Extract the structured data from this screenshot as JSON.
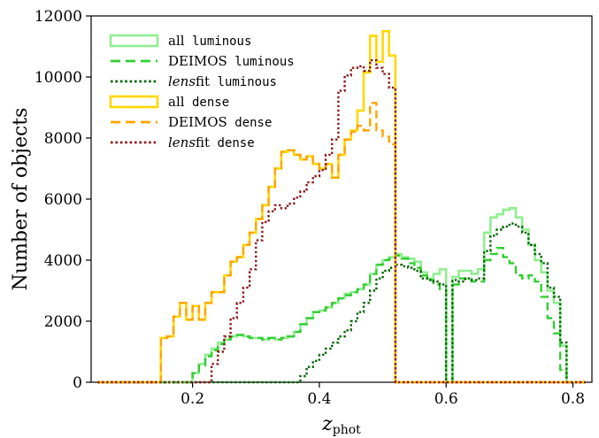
{
  "chart_data": {
    "type": "line",
    "step": true,
    "xlabel": "z",
    "xlabel_sub": "phot",
    "ylabel": "Number of objects",
    "xlim": [
      0.04,
      0.83
    ],
    "ylim": [
      0,
      12000
    ],
    "xticks": [
      0.2,
      0.4,
      0.6,
      0.8
    ],
    "xtick_labels": [
      "0.2",
      "0.4",
      "0.6",
      "0.8"
    ],
    "yticks": [
      0,
      2000,
      4000,
      6000,
      8000,
      10000,
      12000
    ],
    "ytick_labels": [
      "0",
      "2000",
      "4000",
      "6000",
      "8000",
      "10000",
      "12000"
    ],
    "grid": false,
    "legend_position": "top-left",
    "bin_edges": [
      0.05,
      0.06,
      0.07,
      0.08,
      0.09,
      0.1,
      0.11,
      0.12,
      0.13,
      0.14,
      0.15,
      0.16,
      0.17,
      0.18,
      0.19,
      0.2,
      0.21,
      0.22,
      0.23,
      0.24,
      0.25,
      0.26,
      0.27,
      0.28,
      0.29,
      0.3,
      0.31,
      0.32,
      0.33,
      0.34,
      0.35,
      0.36,
      0.37,
      0.38,
      0.39,
      0.4,
      0.41,
      0.42,
      0.43,
      0.44,
      0.45,
      0.46,
      0.47,
      0.48,
      0.49,
      0.5,
      0.51,
      0.52,
      0.53,
      0.54,
      0.55,
      0.56,
      0.57,
      0.58,
      0.59,
      0.6,
      0.61,
      0.62,
      0.63,
      0.64,
      0.65,
      0.66,
      0.67,
      0.68,
      0.69,
      0.7,
      0.71,
      0.72,
      0.73,
      0.74,
      0.75,
      0.76,
      0.77,
      0.78,
      0.79,
      0.8,
      0.81,
      0.82
    ],
    "series": [
      {
        "name_prefix": "all",
        "name_mono": "luminous",
        "prefix_italic": false,
        "color": "#90ee90",
        "dash": "solid",
        "width": 2.6,
        "values": [
          0,
          0,
          0,
          0,
          0,
          0,
          0,
          0,
          0,
          0,
          0,
          0,
          0,
          0,
          0,
          300,
          600,
          900,
          1100,
          1300,
          1400,
          1500,
          1550,
          1500,
          1450,
          1450,
          1400,
          1450,
          1400,
          1450,
          1500,
          1650,
          1900,
          2100,
          2300,
          2350,
          2450,
          2600,
          2750,
          2900,
          2950,
          3050,
          3200,
          3550,
          3850,
          4000,
          4100,
          4200,
          4100,
          4050,
          3950,
          3600,
          3400,
          3550,
          3700,
          0,
          3450,
          3650,
          3650,
          3550,
          3700,
          4900,
          5400,
          5500,
          5650,
          5700,
          5400,
          5000,
          4500,
          4000,
          3600,
          3000,
          2600,
          1200,
          0,
          0,
          0
        ]
      },
      {
        "name_prefix": "DEIMOS",
        "name_mono": "luminous",
        "prefix_italic": false,
        "color": "#32cd32",
        "dash": "dashed",
        "width": 2.4,
        "values": [
          0,
          0,
          0,
          0,
          0,
          0,
          0,
          0,
          0,
          0,
          0,
          0,
          0,
          0,
          0,
          300,
          550,
          850,
          1050,
          1250,
          1400,
          1500,
          1550,
          1500,
          1450,
          1450,
          1400,
          1450,
          1400,
          1450,
          1500,
          1650,
          1900,
          2100,
          2300,
          2350,
          2450,
          2600,
          2750,
          2850,
          2950,
          3050,
          3200,
          3550,
          3850,
          4000,
          4050,
          4150,
          4050,
          3900,
          3750,
          3500,
          3350,
          3200,
          3050,
          0,
          3200,
          3400,
          3400,
          3300,
          3300,
          4000,
          4200,
          4400,
          4100,
          3900,
          3500,
          3400,
          3500,
          3300,
          2800,
          2100,
          1600,
          400,
          0,
          0,
          0
        ]
      },
      {
        "name_prefix": "lens",
        "name_suffix": "fit",
        "name_mono": "luminous",
        "prefix_italic": true,
        "color": "#006400",
        "dash": "dotted",
        "width": 2.4,
        "values": [
          0,
          0,
          0,
          0,
          0,
          0,
          0,
          0,
          0,
          0,
          0,
          0,
          0,
          0,
          0,
          0,
          0,
          0,
          0,
          0,
          0,
          0,
          0,
          0,
          0,
          0,
          0,
          0,
          0,
          0,
          0,
          0,
          200,
          500,
          700,
          900,
          1100,
          1300,
          1500,
          1700,
          2000,
          2300,
          2600,
          3000,
          3400,
          3650,
          3750,
          3850,
          3800,
          3750,
          3650,
          3400,
          3350,
          3300,
          3200,
          0,
          3350,
          3300,
          3400,
          3350,
          3400,
          4300,
          4800,
          5000,
          5100,
          5200,
          5100,
          4900,
          4500,
          4200,
          3900,
          3100,
          2800,
          1300,
          0,
          0,
          0
        ]
      },
      {
        "name_prefix": "all",
        "name_mono": "dense",
        "prefix_italic": false,
        "color": "#ffd700",
        "dash": "solid",
        "width": 2.6,
        "values": [
          0,
          0,
          0,
          0,
          0,
          0,
          0,
          0,
          0,
          0,
          1450,
          1500,
          2150,
          2600,
          2050,
          2500,
          2050,
          2600,
          2950,
          2950,
          3500,
          3950,
          4100,
          4500,
          4900,
          5350,
          5800,
          6400,
          7000,
          7550,
          7600,
          7450,
          7300,
          7400,
          7150,
          7000,
          7150,
          6700,
          7450,
          7950,
          8250,
          8900,
          10150,
          11350,
          10500,
          11500,
          10700,
          0,
          0,
          0,
          0,
          0,
          0,
          0,
          0,
          0,
          0,
          0,
          0,
          0,
          0,
          0,
          0,
          0,
          0,
          0,
          0,
          0,
          0,
          0,
          0,
          0,
          0,
          0,
          0,
          0,
          0
        ]
      },
      {
        "name_prefix": "DEIMOS",
        "name_mono": "dense",
        "prefix_italic": false,
        "color": "#ffa500",
        "dash": "dashed",
        "width": 2.4,
        "values": [
          0,
          0,
          0,
          0,
          0,
          0,
          0,
          0,
          0,
          0,
          1450,
          1500,
          2150,
          2600,
          2050,
          2500,
          2050,
          2600,
          2950,
          2950,
          3500,
          3950,
          4100,
          4500,
          4900,
          5350,
          5800,
          6400,
          7000,
          7550,
          7600,
          7450,
          7300,
          7400,
          7150,
          7000,
          7150,
          6700,
          7450,
          7950,
          8200,
          8400,
          8250,
          9150,
          8250,
          8050,
          7800,
          0,
          0,
          0,
          0,
          0,
          0,
          0,
          0,
          0,
          0,
          0,
          0,
          0,
          0,
          0,
          0,
          0,
          0,
          0,
          0,
          0,
          0,
          0,
          0,
          0,
          0,
          0,
          0,
          0,
          0
        ]
      },
      {
        "name_prefix": "lens",
        "name_suffix": "fit",
        "name_mono": "dense",
        "prefix_italic": true,
        "color": "#8b1a1a",
        "dash": "dotted",
        "width": 2.4,
        "values": [
          0,
          0,
          0,
          0,
          0,
          0,
          0,
          0,
          0,
          0,
          0,
          0,
          0,
          0,
          0,
          0,
          0,
          0,
          600,
          1000,
          1500,
          2100,
          2600,
          3100,
          3700,
          4650,
          5250,
          5600,
          5800,
          5700,
          5850,
          6050,
          6250,
          6550,
          6750,
          6950,
          7450,
          7950,
          9550,
          10050,
          10300,
          10350,
          10200,
          10550,
          10300,
          10100,
          9650,
          0,
          0,
          0,
          0,
          0,
          0,
          0,
          0,
          0,
          0,
          0,
          0,
          0,
          0,
          0,
          0,
          0,
          0,
          0,
          0,
          0,
          0,
          0,
          0,
          0,
          0,
          0,
          0,
          0,
          0
        ]
      }
    ]
  }
}
